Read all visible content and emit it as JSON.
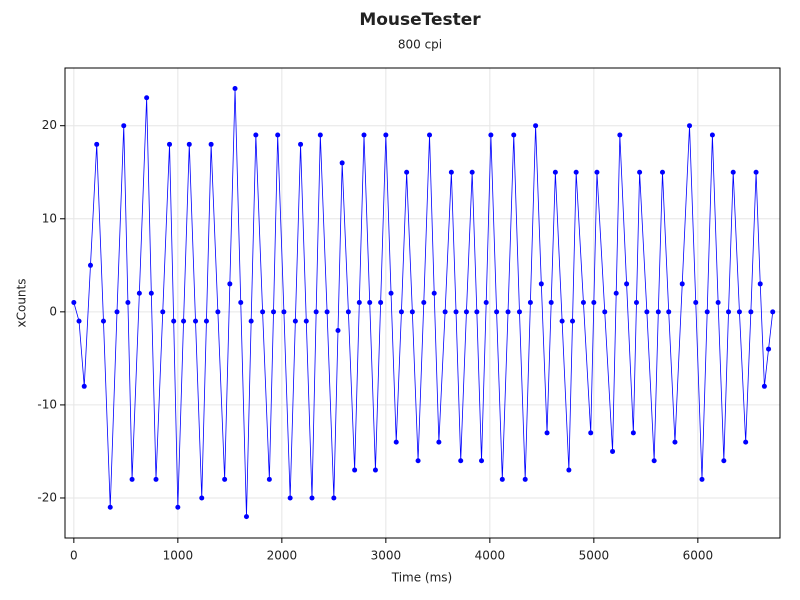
{
  "chart_data": {
    "type": "scatter",
    "title": "MouseTester",
    "subtitle": "800 cpi",
    "x_label": "Time (ms)",
    "y_label": "xCounts",
    "x": [
      0,
      50,
      100,
      160,
      220,
      285,
      350,
      415,
      480,
      520,
      560,
      630,
      700,
      745,
      790,
      855,
      920,
      960,
      1000,
      1055,
      1110,
      1170,
      1230,
      1275,
      1320,
      1385,
      1450,
      1500,
      1550,
      1605,
      1660,
      1705,
      1750,
      1815,
      1880,
      1920,
      1960,
      2020,
      2080,
      2130,
      2180,
      2235,
      2290,
      2330,
      2370,
      2435,
      2500,
      2540,
      2580,
      2640,
      2700,
      2745,
      2790,
      2845,
      2900,
      2950,
      3000,
      3050,
      3100,
      3150,
      3200,
      3255,
      3310,
      3365,
      3420,
      3465,
      3510,
      3570,
      3630,
      3675,
      3720,
      3775,
      3830,
      3875,
      3920,
      3965,
      4010,
      4065,
      4120,
      4175,
      4230,
      4285,
      4340,
      4390,
      4440,
      4495,
      4550,
      4590,
      4630,
      4695,
      4760,
      4795,
      4830,
      4900,
      4970,
      5000,
      5030,
      5105,
      5180,
      5215,
      5250,
      5315,
      5380,
      5410,
      5440,
      5510,
      5580,
      5620,
      5660,
      5720,
      5780,
      5850,
      5920,
      5980,
      6040,
      6090,
      6140,
      6195,
      6250,
      6295,
      6340,
      6400,
      6460,
      6510,
      6560,
      6600,
      6640,
      6680,
      6720
    ],
    "series": [
      {
        "name": "xCounts",
        "color": "#0000ff",
        "values": [
          1,
          -1,
          -8,
          5,
          18,
          -1,
          -21,
          0,
          20,
          1,
          -18,
          2,
          23,
          2,
          -18,
          0,
          18,
          -1,
          -21,
          -1,
          18,
          -1,
          -20,
          -1,
          18,
          0,
          -18,
          3,
          24,
          1,
          -22,
          -1,
          19,
          0,
          -18,
          0,
          19,
          0,
          -20,
          -1,
          18,
          -1,
          -20,
          0,
          19,
          0,
          -20,
          -2,
          16,
          0,
          -17,
          1,
          19,
          1,
          -17,
          1,
          19,
          2,
          -14,
          0,
          15,
          0,
          -16,
          1,
          19,
          2,
          -14,
          0,
          15,
          0,
          -16,
          0,
          15,
          0,
          -16,
          1,
          19,
          0,
          -18,
          0,
          19,
          0,
          -18,
          1,
          20,
          3,
          -13,
          1,
          15,
          -1,
          -17,
          -1,
          15,
          1,
          -13,
          1,
          15,
          0,
          -15,
          2,
          19,
          3,
          -13,
          1,
          15,
          0,
          -16,
          0,
          15,
          0,
          -14,
          3,
          20,
          1,
          -18,
          0,
          19,
          1,
          -16,
          0,
          15,
          0,
          -14,
          0,
          15,
          3,
          -8,
          -4,
          0
        ]
      }
    ],
    "xlim": [
      -85,
      6790
    ],
    "ylim": [
      -24.3,
      26.2
    ],
    "xticks": [
      0,
      1000,
      2000,
      3000,
      4000,
      5000,
      6000
    ],
    "yticks": [
      -20,
      -10,
      0,
      10,
      20
    ],
    "grid": true
  }
}
